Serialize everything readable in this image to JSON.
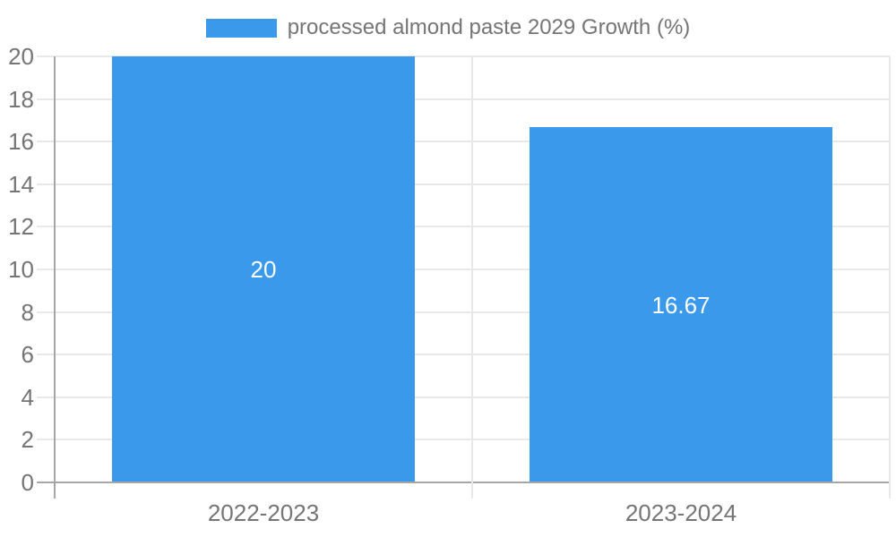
{
  "colors": {
    "bar": "#3b99ec",
    "grid": "#e8e8e8",
    "axis": "#a6a6a6",
    "text": "#757575",
    "bar_label": "#ffffff",
    "background": "#ffffff"
  },
  "legend": {
    "label": "processed almond paste 2029 Growth (%)"
  },
  "chart_data": {
    "type": "bar",
    "title": "",
    "categories": [
      "2022-2023",
      "2023-2024"
    ],
    "series": [
      {
        "name": "processed almond paste 2029 Growth (%)",
        "values": [
          20,
          16.67
        ]
      }
    ],
    "bar_labels": [
      "20",
      "16.67"
    ],
    "xlabel": "",
    "ylabel": "",
    "ylim": [
      0,
      20
    ],
    "yticks": [
      0,
      2,
      4,
      6,
      8,
      10,
      12,
      14,
      16,
      18,
      20
    ],
    "grid": true,
    "legend_position": "top-center",
    "bar_label_position": "center-inside"
  }
}
